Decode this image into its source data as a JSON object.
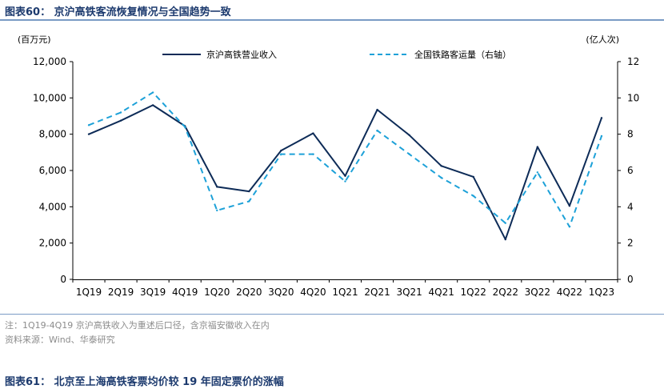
{
  "header": {
    "figure_title": "图表60：  京沪高铁客流恢复情况与全国趋势一致"
  },
  "footer": {
    "note": "注：1Q19-4Q19 京沪高铁收入为重述后口径，含京福安徽收入在内",
    "source": "资料来源：Wind、华泰研究",
    "next_figure_title": "图表61：  北京至上海高铁客票均价较 19 年固定票价的涨幅"
  },
  "chart_data": {
    "type": "line",
    "title": "",
    "left_axis_unit": "(百万元)",
    "right_axis_unit": "(亿人次)",
    "categories": [
      "1Q19",
      "2Q19",
      "3Q19",
      "4Q19",
      "1Q20",
      "2Q20",
      "3Q20",
      "4Q20",
      "1Q21",
      "2Q21",
      "3Q21",
      "4Q21",
      "1Q22",
      "2Q22",
      "3Q22",
      "4Q22",
      "1Q23"
    ],
    "ylim_left": [
      0,
      12000
    ],
    "yticks_left": [
      0,
      2000,
      4000,
      6000,
      8000,
      10000,
      12000
    ],
    "ytick_labels_left": [
      "0",
      "2,000",
      "4,000",
      "6,000",
      "8,000",
      "10,000",
      "12,000"
    ],
    "ylim_right": [
      0,
      12
    ],
    "yticks_right": [
      0,
      2,
      4,
      6,
      8,
      10,
      12
    ],
    "ytick_labels_right": [
      "0",
      "2",
      "4",
      "6",
      "8",
      "10",
      "12"
    ],
    "grid": false,
    "legend_position": "top",
    "series": [
      {
        "name": "京沪高铁营业收入",
        "axis": "left",
        "style": "solid",
        "color": "#0d2b57",
        "values": [
          8000,
          8750,
          9600,
          8450,
          5100,
          4850,
          7100,
          8050,
          5700,
          9350,
          7950,
          6250,
          5650,
          2200,
          7300,
          4050,
          8900
        ]
      },
      {
        "name": "全国铁路客运量（右轴）",
        "axis": "right",
        "style": "dashed",
        "color": "#1da1d8",
        "values": [
          8.5,
          9.2,
          10.3,
          8.4,
          3.8,
          4.3,
          6.9,
          6.9,
          5.4,
          8.2,
          6.9,
          5.6,
          4.6,
          3.1,
          5.9,
          2.9,
          7.9
        ]
      }
    ]
  }
}
